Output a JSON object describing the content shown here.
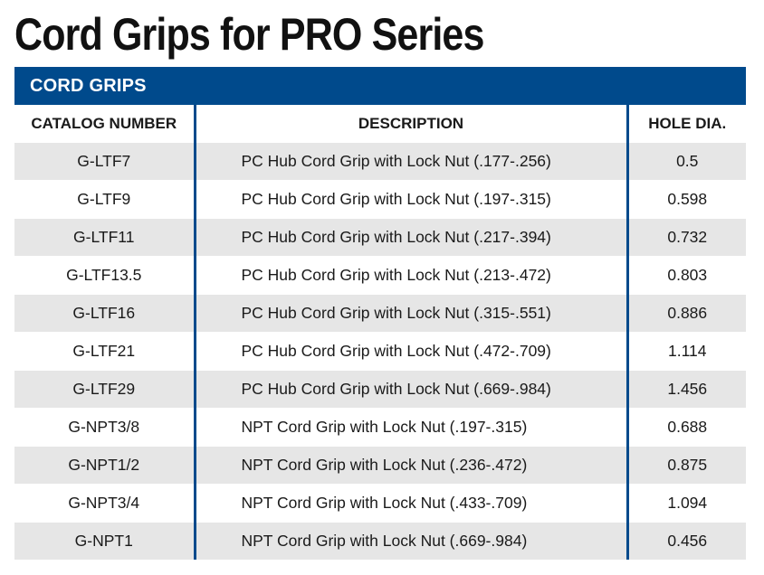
{
  "title": "Cord Grips for PRO Series",
  "section": "CORD GRIPS",
  "columns": {
    "catalog": "CATALOG NUMBER",
    "description": "DESCRIPTION",
    "hole": "HOLE DIA."
  },
  "rows": [
    {
      "catalog": "G-LTF7",
      "description": "PC Hub Cord Grip with Lock Nut (.177-.256)",
      "hole": "0.5"
    },
    {
      "catalog": "G-LTF9",
      "description": "PC Hub Cord Grip with Lock Nut (.197-.315)",
      "hole": "0.598"
    },
    {
      "catalog": "G-LTF11",
      "description": "PC Hub Cord Grip with Lock Nut (.217-.394)",
      "hole": "0.732"
    },
    {
      "catalog": "G-LTF13.5",
      "description": "PC Hub Cord Grip with Lock Nut (.213-.472)",
      "hole": "0.803"
    },
    {
      "catalog": "G-LTF16",
      "description": "PC Hub Cord Grip with Lock Nut (.315-.551)",
      "hole": "0.886"
    },
    {
      "catalog": "G-LTF21",
      "description": "PC Hub Cord Grip with Lock Nut (.472-.709)",
      "hole": "1.114"
    },
    {
      "catalog": "G-LTF29",
      "description": "PC Hub Cord Grip with Lock Nut (.669-.984)",
      "hole": "1.456"
    },
    {
      "catalog": "G-NPT3/8",
      "description": "NPT Cord Grip with Lock Nut (.197-.315)",
      "hole": "0.688"
    },
    {
      "catalog": "G-NPT1/2",
      "description": "NPT Cord Grip with Lock Nut (.236-.472)",
      "hole": "0.875"
    },
    {
      "catalog": "G-NPT3/4",
      "description": "NPT Cord Grip with Lock Nut (.433-.709)",
      "hole": "1.094"
    },
    {
      "catalog": "G-NPT1",
      "description": "NPT Cord Grip with Lock Nut (.669-.984)",
      "hole": "0.456"
    }
  ],
  "colors": {
    "header_blue": "#004a8c",
    "row_shade": "#e6e6e6"
  }
}
